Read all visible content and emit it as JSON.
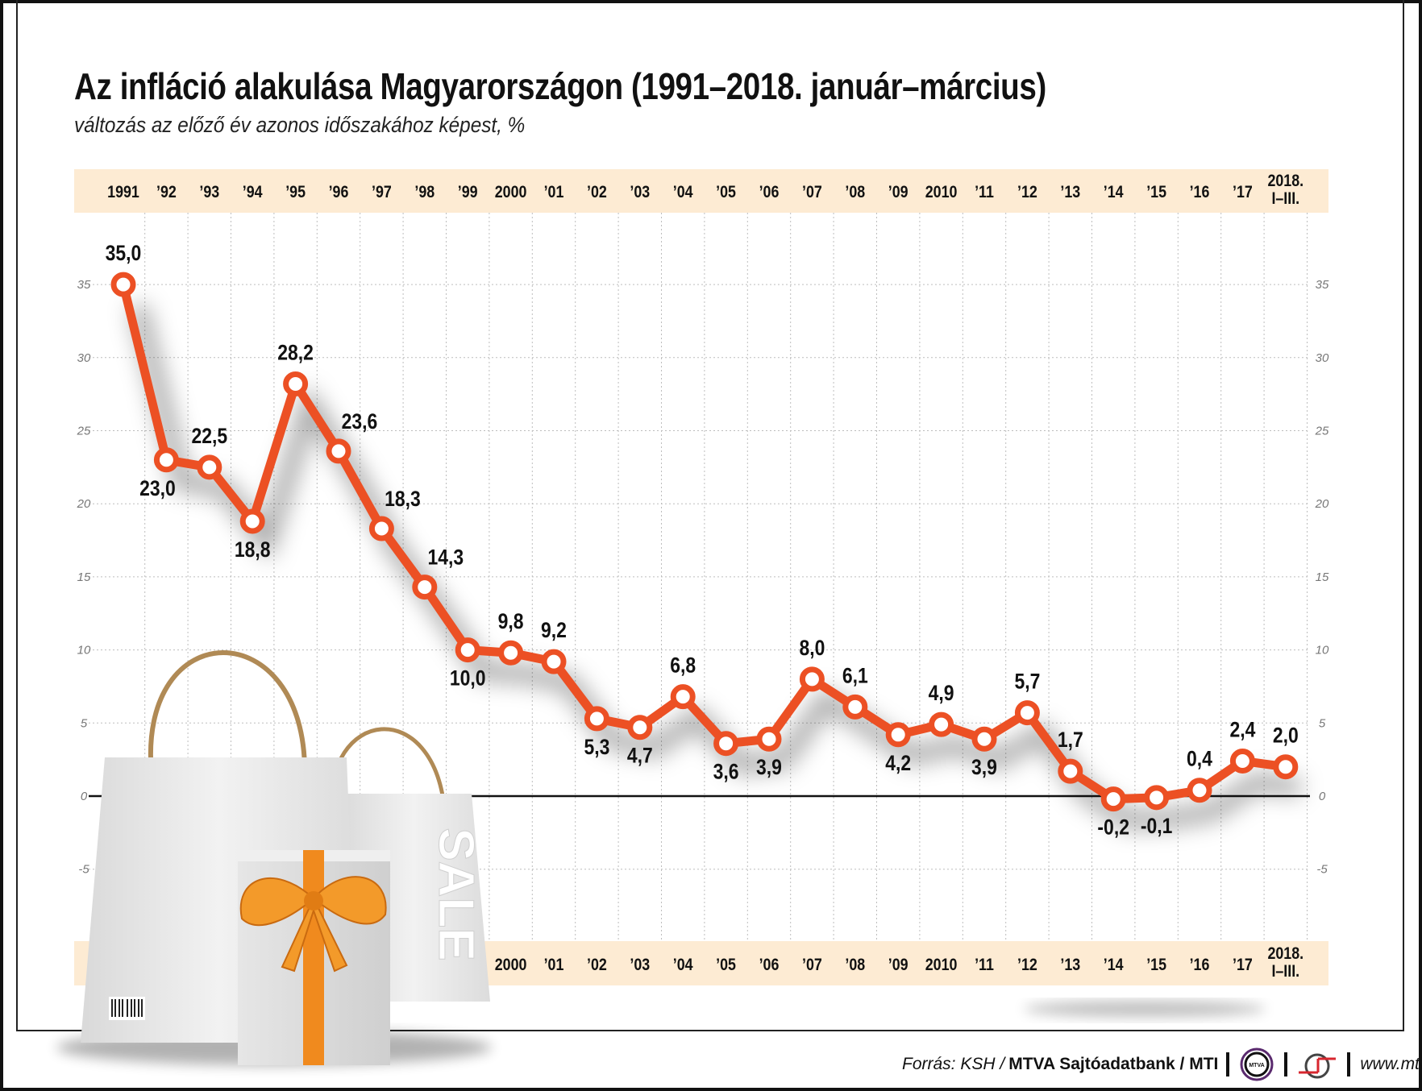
{
  "title": "Az infláció alakulása Magyarországon (1991–2018. január–március)",
  "subtitle": "változás az előző év azonos időszakához képest, %",
  "footer": {
    "source_prefix": "Forrás: KSH / ",
    "source_bold": "MTVA Sajtóadatbank / MTI",
    "logo1_text": "MTVA",
    "website": "www.mti.hu"
  },
  "illustration": {
    "bag_text": "SALE"
  },
  "colors": {
    "line": "#ec5024",
    "band": "#fdebd3",
    "grid": "#bdbdbd",
    "zero_line": "#111111"
  },
  "chart_data": {
    "type": "line",
    "title": "Az infláció alakulása Magyarországon (1991–2018. január–március)",
    "subtitle": "változás az előző év azonos időszakához képest, %",
    "categories": [
      "1991",
      "’92",
      "’93",
      "’94",
      "’95",
      "’96",
      "’97",
      "’98",
      "’99",
      "2000",
      "’01",
      "’02",
      "’03",
      "’04",
      "’05",
      "’06",
      "’07",
      "’08",
      "’09",
      "2010",
      "’11",
      "’12",
      "’13",
      "’14",
      "’15",
      "’16",
      "’17",
      "2018.\nI–III."
    ],
    "values": [
      35.0,
      23.0,
      22.5,
      18.8,
      28.2,
      23.6,
      18.3,
      14.3,
      10.0,
      9.8,
      9.2,
      5.3,
      4.7,
      6.8,
      3.6,
      3.9,
      8.0,
      6.1,
      4.2,
      4.9,
      3.9,
      5.7,
      1.7,
      -0.2,
      -0.1,
      0.4,
      2.4,
      2.0
    ],
    "data_labels": [
      "35,0",
      "23,0",
      "22,5",
      "18,8",
      "28,2",
      "23,6",
      "18,3",
      "14,3",
      "10,0",
      "9,8",
      "9,2",
      "5,3",
      "4,7",
      "6,8",
      "3,6",
      "3,9",
      "8,0",
      "6,1",
      "4,2",
      "4,9",
      "3,9",
      "5,7",
      "1,7",
      "-0,2",
      "-0,1",
      "0,4",
      "2,4",
      "2,0"
    ],
    "yticks": [
      "35",
      "30",
      "25",
      "20",
      "15",
      "10",
      "5",
      "0",
      "-5"
    ],
    "ylim": [
      -7,
      38
    ],
    "grid": true,
    "legend": "none",
    "xlabel": "",
    "ylabel": ""
  }
}
